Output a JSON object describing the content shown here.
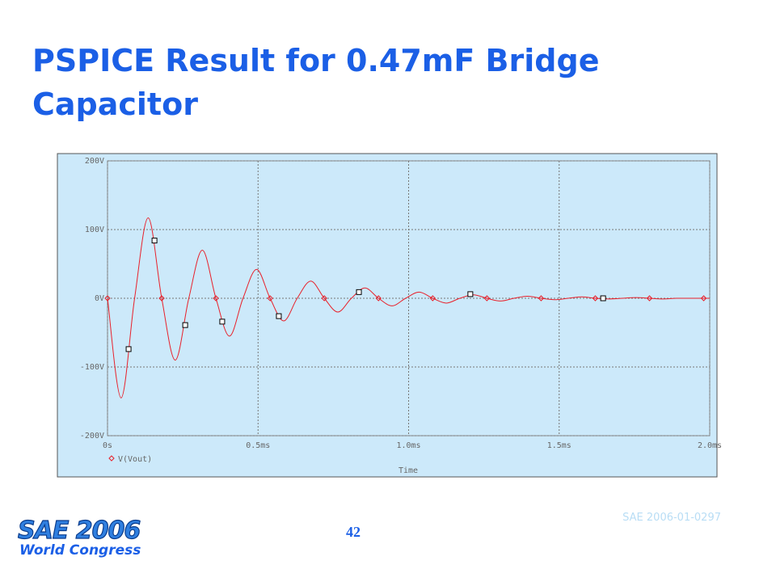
{
  "slide": {
    "title": "PSPICE Result for 0.47mF Bridge Capacitor",
    "page_number": "42",
    "reference": "SAE 2006-01-0297",
    "logo": {
      "line1": "SAE 2006",
      "line2": "World Congress"
    }
  },
  "chart_data": {
    "type": "line",
    "x_label": "Time",
    "x": [
      0,
      0.045,
      0.09,
      0.135,
      0.18,
      0.225,
      0.27,
      0.315,
      0.36,
      0.405,
      0.45,
      0.495,
      0.54,
      0.585,
      0.63,
      0.675,
      0.72,
      0.765,
      0.81,
      0.855,
      0.9,
      0.945,
      0.99,
      1.035,
      1.08,
      1.125,
      1.17,
      1.215,
      1.26,
      1.305,
      1.35,
      1.395,
      1.44,
      1.485,
      1.53,
      1.575,
      1.62,
      1.665,
      1.71,
      1.755,
      1.8,
      1.845,
      1.89,
      1.935,
      1.98,
      2.0
    ],
    "series": [
      {
        "name": "V(Vout)",
        "color": "#e8202a",
        "values": [
          0,
          -145,
          0,
          117,
          0,
          -90,
          0,
          70,
          0,
          -55,
          0,
          42,
          0,
          -33,
          0,
          25,
          0,
          -20,
          0,
          15,
          0,
          -11,
          0,
          9,
          0,
          -7,
          0,
          5,
          0,
          -4,
          0,
          3,
          0,
          -2,
          0,
          2,
          0,
          -1,
          0,
          1,
          0,
          -1,
          0,
          0,
          0,
          0
        ]
      }
    ],
    "cursor_points": {
      "x": [
        0.07,
        0.156,
        0.258,
        0.381,
        0.569,
        0.835,
        1.205,
        1.646
      ],
      "y": [
        -74,
        84,
        -39,
        -34,
        -26,
        9,
        6,
        0
      ]
    },
    "xlim": [
      0,
      2.0
    ],
    "ylim": [
      -200,
      200
    ],
    "xticks": [
      {
        "value": 0,
        "label": "0s"
      },
      {
        "value": 0.5,
        "label": "0.5ms"
      },
      {
        "value": 1.0,
        "label": "1.0ms"
      },
      {
        "value": 1.5,
        "label": "1.5ms"
      },
      {
        "value": 2.0,
        "label": "2.0ms"
      }
    ],
    "yticks": [
      {
        "value": -200,
        "label": "-200V"
      },
      {
        "value": -100,
        "label": "-100V"
      },
      {
        "value": 0,
        "label": "0V"
      },
      {
        "value": 100,
        "label": "100V"
      },
      {
        "value": 200,
        "label": "200V"
      }
    ],
    "grid": true
  }
}
